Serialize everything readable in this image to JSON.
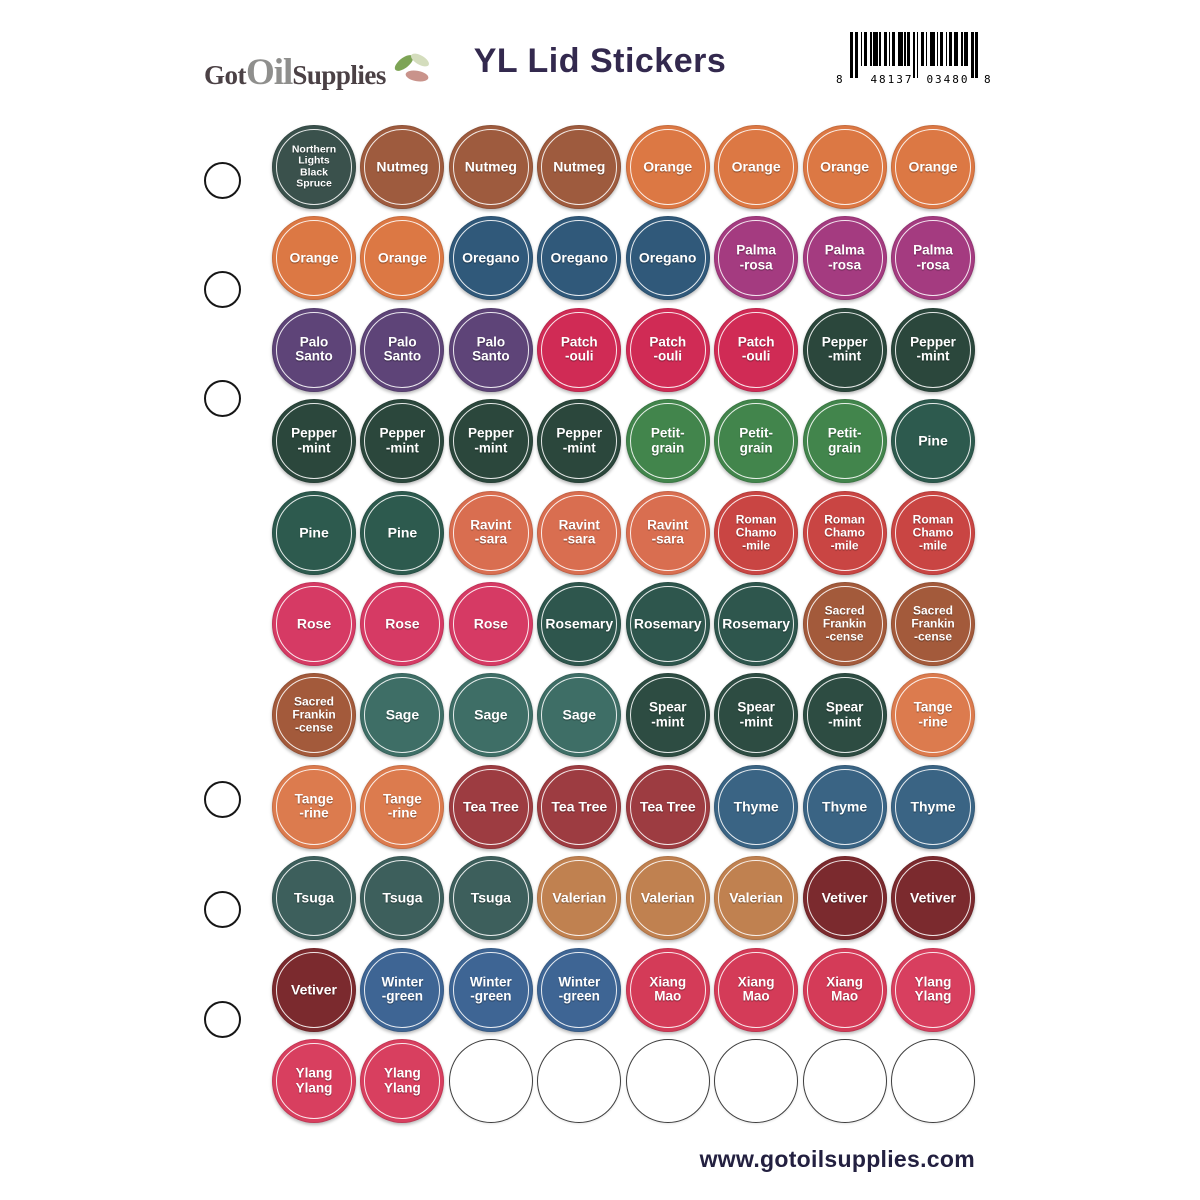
{
  "header": {
    "logo": {
      "part1": "Got",
      "part2": "Oil",
      "part3": "Supplies"
    },
    "title": "YL Lid Stickers",
    "barcode": {
      "left_digit": "8",
      "group1": "48137",
      "group2": "03480",
      "right_digit": "8"
    }
  },
  "footer": {
    "website": "www.gotoilsupplies.com"
  },
  "sheet": {
    "columns": 8,
    "rows": 11,
    "punch_holes": 6,
    "empty_slots": 6
  },
  "oil_types": {
    "northern-lights-black-spruce": {
      "label": "Northern Lights Black Spruce",
      "lines": [
        "Northern",
        "Lights",
        "Black",
        "Spruce"
      ],
      "color": "#3a514c"
    },
    "nutmeg": {
      "label": "Nutmeg",
      "lines": [
        "Nutmeg"
      ],
      "color": "#9e5b3e"
    },
    "orange": {
      "label": "Orange",
      "lines": [
        "Orange"
      ],
      "color": "#dc7844"
    },
    "oregano": {
      "label": "Oregano",
      "lines": [
        "Oregano"
      ],
      "color": "#30597a"
    },
    "palmarosa": {
      "label": "Palma-rosa",
      "lines": [
        "Palma",
        "-rosa"
      ],
      "color": "#a43b80"
    },
    "palo-santo": {
      "label": "Palo Santo",
      "lines": [
        "Palo",
        "Santo"
      ],
      "color": "#5e4478"
    },
    "patchouli": {
      "label": "Patch-ouli",
      "lines": [
        "Patch",
        "-ouli"
      ],
      "color": "#d02b55"
    },
    "peppermint": {
      "label": "Pepper-mint",
      "lines": [
        "Pepper",
        "-mint"
      ],
      "color": "#2b473c"
    },
    "petitgrain": {
      "label": "Petit-grain",
      "lines": [
        "Petit-",
        "grain"
      ],
      "color": "#42854c"
    },
    "pine": {
      "label": "Pine",
      "lines": [
        "Pine"
      ],
      "color": "#2d5a4e"
    },
    "ravintsara": {
      "label": "Ravint-sara",
      "lines": [
        "Ravint",
        "-sara"
      ],
      "color": "#d96e50"
    },
    "roman-chamomile": {
      "label": "Roman Chamo-mile",
      "lines": [
        "Roman",
        "Chamo",
        "-mile"
      ],
      "color": "#c94543"
    },
    "rose": {
      "label": "Rose",
      "lines": [
        "Rose"
      ],
      "color": "#d63a64"
    },
    "rosemary": {
      "label": "Rosemary",
      "lines": [
        "Rosemary"
      ],
      "color": "#2e564d"
    },
    "sacred-frankincense": {
      "label": "Sacred Frankin-cense",
      "lines": [
        "Sacred",
        "Frankin",
        "-cense"
      ],
      "color": "#a35a3b"
    },
    "sage": {
      "label": "Sage",
      "lines": [
        "Sage"
      ],
      "color": "#3e6e66"
    },
    "spearmint": {
      "label": "Spear-mint",
      "lines": [
        "Spear",
        "-mint"
      ],
      "color": "#2d4c42"
    },
    "tangerine": {
      "label": "Tange-rine",
      "lines": [
        "Tange",
        "-rine"
      ],
      "color": "#dc7b4e"
    },
    "tea-tree": {
      "label": "Tea Tree",
      "lines": [
        "Tea Tree"
      ],
      "color": "#9d3c41"
    },
    "thyme": {
      "label": "Thyme",
      "lines": [
        "Thyme"
      ],
      "color": "#3a6484"
    },
    "tsuga": {
      "label": "Tsuga",
      "lines": [
        "Tsuga"
      ],
      "color": "#3d5f5c"
    },
    "valerian": {
      "label": "Valerian",
      "lines": [
        "Valerian"
      ],
      "color": "#c08150"
    },
    "vetiver": {
      "label": "Vetiver",
      "lines": [
        "Vetiver"
      ],
      "color": "#7b2a2e"
    },
    "wintergreen": {
      "label": "Winter-green",
      "lines": [
        "Winter",
        "-green"
      ],
      "color": "#3e6594"
    },
    "xiang-mao": {
      "label": "Xiang Mao",
      "lines": [
        "Xiang",
        "Mao"
      ],
      "color": "#d43b58"
    },
    "ylang-ylang": {
      "label": "Ylang Ylang",
      "lines": [
        "Ylang",
        "Ylang"
      ],
      "color": "#d83f5f"
    }
  },
  "grid": [
    [
      "northern-lights-black-spruce",
      "nutmeg",
      "nutmeg",
      "nutmeg",
      "orange",
      "orange",
      "orange",
      "orange"
    ],
    [
      "orange",
      "orange",
      "oregano",
      "oregano",
      "oregano",
      "palmarosa",
      "palmarosa",
      "palmarosa"
    ],
    [
      "palo-santo",
      "palo-santo",
      "palo-santo",
      "patchouli",
      "patchouli",
      "patchouli",
      "peppermint",
      "peppermint"
    ],
    [
      "peppermint",
      "peppermint",
      "peppermint",
      "peppermint",
      "petitgrain",
      "petitgrain",
      "petitgrain",
      "pine"
    ],
    [
      "pine",
      "pine",
      "ravintsara",
      "ravintsara",
      "ravintsara",
      "roman-chamomile",
      "roman-chamomile",
      "roman-chamomile"
    ],
    [
      "rose",
      "rose",
      "rose",
      "rosemary",
      "rosemary",
      "rosemary",
      "sacred-frankincense",
      "sacred-frankincense"
    ],
    [
      "sacred-frankincense",
      "sage",
      "sage",
      "sage",
      "spearmint",
      "spearmint",
      "spearmint",
      "tangerine"
    ],
    [
      "tangerine",
      "tangerine",
      "tea-tree",
      "tea-tree",
      "tea-tree",
      "thyme",
      "thyme",
      "thyme"
    ],
    [
      "tsuga",
      "tsuga",
      "tsuga",
      "valerian",
      "valerian",
      "valerian",
      "vetiver",
      "vetiver"
    ],
    [
      "vetiver",
      "wintergreen",
      "wintergreen",
      "wintergreen",
      "xiang-mao",
      "xiang-mao",
      "xiang-mao",
      "ylang-ylang"
    ],
    [
      "ylang-ylang",
      "ylang-ylang",
      "",
      "",
      "",
      "",
      "",
      ""
    ]
  ]
}
